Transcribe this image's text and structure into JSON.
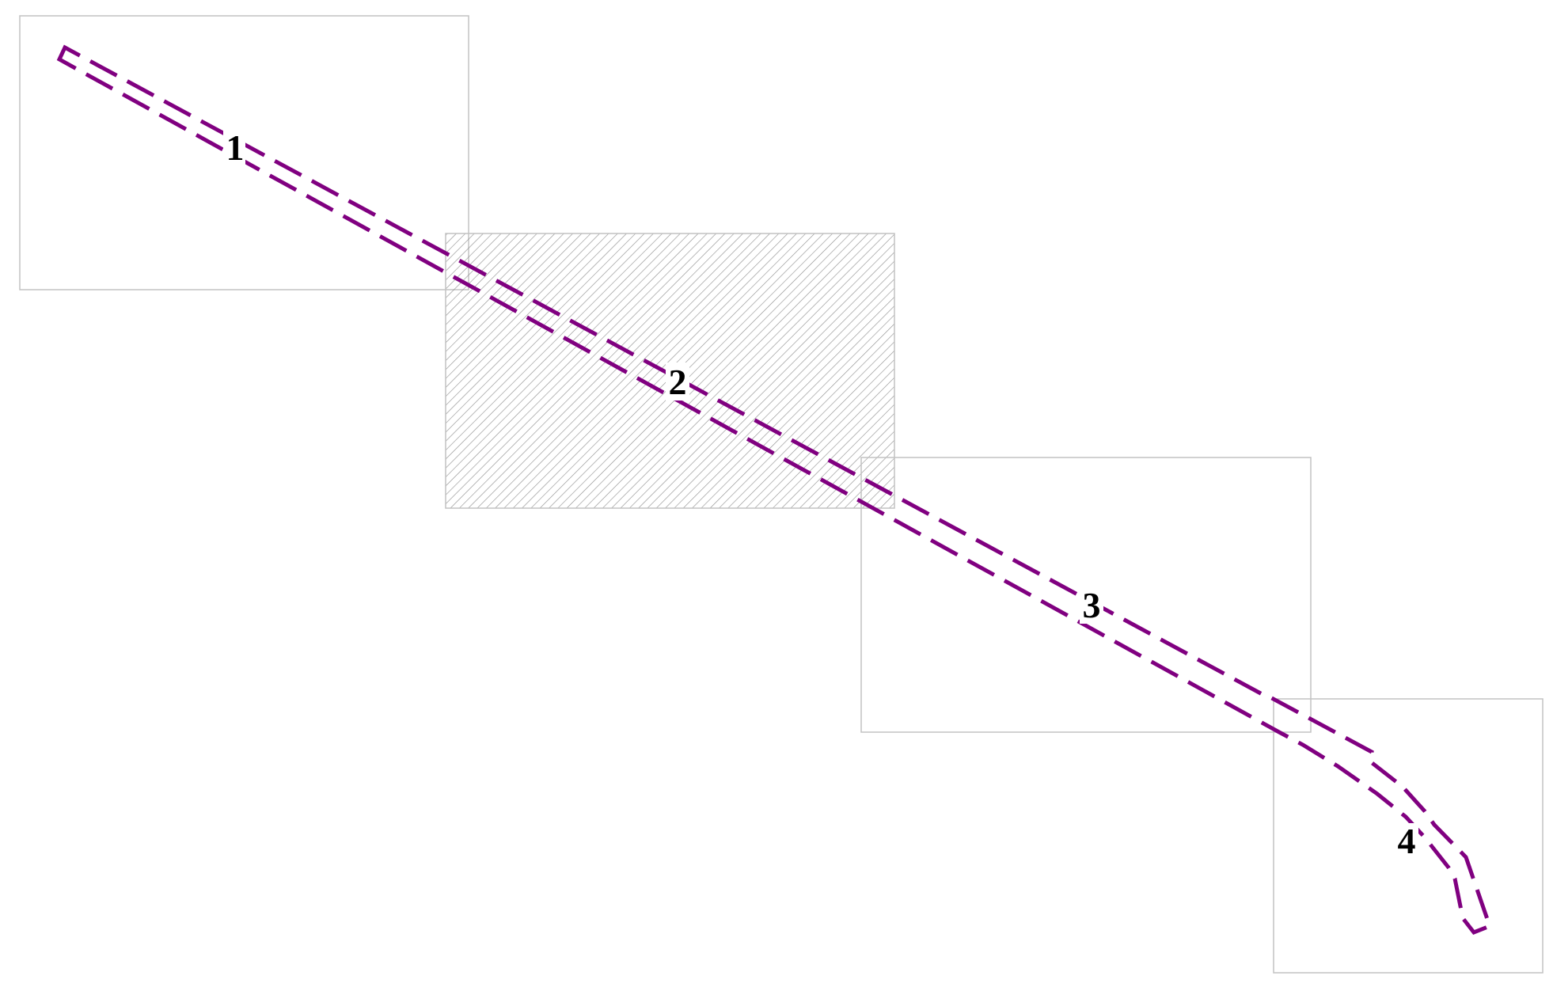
{
  "colors": {
    "corridor": "#800080",
    "frame_border": "#c2c2c2",
    "hatch": "#8c8c8c",
    "label": "#000000"
  },
  "frames": [
    {
      "label": "1",
      "highlighted": false
    },
    {
      "label": "2",
      "highlighted": true
    },
    {
      "label": "3",
      "highlighted": false
    },
    {
      "label": "4",
      "highlighted": false
    }
  ]
}
